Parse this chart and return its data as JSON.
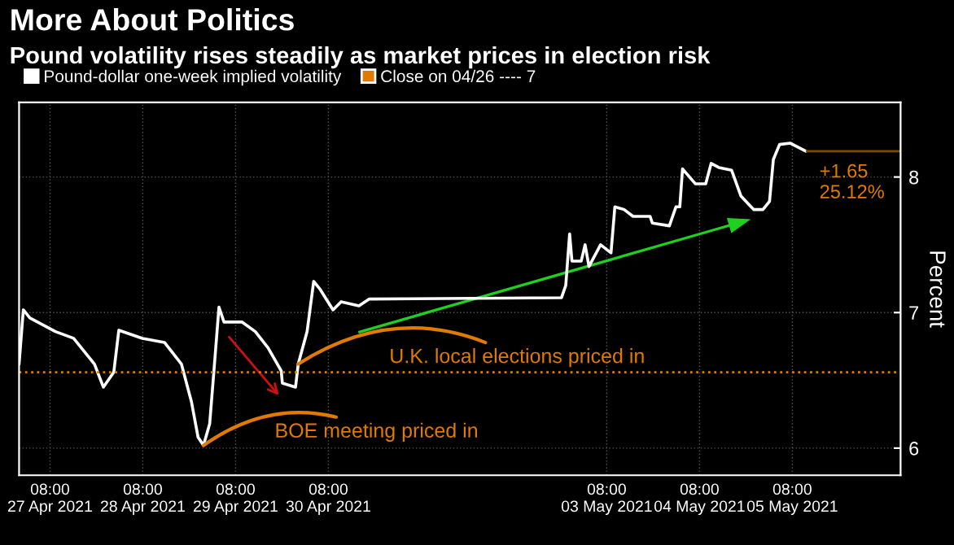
{
  "chart_data": {
    "type": "line",
    "title": "More About Politics",
    "subtitle": "Pound volatility rises steadily as market prices in election risk",
    "ylabel": "Percent",
    "series": [
      {
        "name": "Pound-dollar one-week implied volatility",
        "color": "#ffffff",
        "x": [
          "2021-04-27T00:00",
          "2021-04-27T01:06",
          "2021-04-27T02:48",
          "2021-04-27T09:24",
          "2021-04-27T14:06",
          "2021-04-27T19:30",
          "2021-04-27T21:48",
          "2021-04-28T00:30",
          "2021-04-28T01:48",
          "2021-04-28T07:54",
          "2021-04-28T13:36",
          "2021-04-28T18:00",
          "2021-04-28T20:36",
          "2021-04-28T22:18",
          "2021-04-28T23:42",
          "2021-04-29T01:18",
          "2021-04-29T02:24",
          "2021-04-29T03:42",
          "2021-04-29T05:00",
          "2021-04-29T09:42",
          "2021-04-29T13:06",
          "2021-04-29T16:24",
          "2021-04-29T19:48",
          "2021-04-29T20:06",
          "2021-04-29T23:30",
          "2021-04-30T00:12",
          "2021-04-30T02:30",
          "2021-04-30T04:12",
          "2021-04-30T05:54",
          "2021-04-30T09:12",
          "2021-04-30T11:18",
          "2021-04-30T15:54",
          "2021-04-30T18:36",
          "2021-05-02T20:18",
          "2021-05-02T21:24",
          "2021-05-02T22:24",
          "2021-05-02T23:00",
          "2021-05-03T01:24",
          "2021-05-03T02:24",
          "2021-05-03T03:24",
          "2021-05-03T06:24",
          "2021-05-03T09:06",
          "2021-05-03T10:06",
          "2021-05-03T12:30",
          "2021-05-03T14:48",
          "2021-05-03T19:12",
          "2021-05-03T19:48",
          "2021-05-04T00:12",
          "2021-05-04T01:54",
          "2021-05-04T02:54",
          "2021-05-04T03:36",
          "2021-05-04T06:54",
          "2021-05-04T09:36",
          "2021-05-04T11:00",
          "2021-05-04T13:00",
          "2021-05-04T16:18",
          "2021-05-04T18:42",
          "2021-05-04T22:00",
          "2021-05-05T00:24",
          "2021-05-05T02:06",
          "2021-05-05T03:06",
          "2021-05-05T04:42",
          "2021-05-05T07:24",
          "2021-05-05T11:30"
        ],
        "values": [
          6.62,
          7.02,
          6.96,
          6.86,
          6.81,
          6.62,
          6.45,
          6.56,
          6.87,
          6.81,
          6.78,
          6.62,
          6.34,
          6.08,
          6.02,
          6.18,
          6.57,
          7.04,
          6.93,
          6.93,
          6.86,
          6.74,
          6.57,
          6.48,
          6.45,
          6.62,
          6.86,
          7.23,
          7.17,
          7.02,
          7.08,
          7.05,
          7.1,
          7.11,
          7.2,
          7.58,
          7.38,
          7.38,
          7.5,
          7.34,
          7.5,
          7.44,
          7.78,
          7.76,
          7.71,
          7.71,
          7.66,
          7.64,
          7.78,
          7.78,
          8.06,
          7.95,
          7.95,
          8.1,
          8.07,
          8.05,
          7.86,
          7.76,
          7.76,
          7.82,
          8.13,
          8.24,
          8.25,
          8.19
        ]
      }
    ],
    "xlim": [
      "2021-04-27T00:00",
      "2021-05-06T12:00"
    ],
    "ylim": [
      5.8,
      8.55
    ],
    "xticks": [
      {
        "value": "2021-04-27T08:00",
        "label": "08:00\n27 Apr 2021"
      },
      {
        "value": "2021-04-28T08:00",
        "label": "08:00\n28 Apr 2021"
      },
      {
        "value": "2021-04-29T08:00",
        "label": "08:00\n29 Apr 2021"
      },
      {
        "value": "2021-04-30T08:00",
        "label": "08:00\n30 Apr 2021"
      },
      {
        "value": "2021-05-03T08:00",
        "label": "08:00\n03 May 2021"
      },
      {
        "value": "2021-05-04T08:00",
        "label": "08:00\n04 May 2021"
      },
      {
        "value": "2021-05-05T08:00",
        "label": "08:00\n05 May 2021"
      }
    ],
    "yticks": [
      6,
      7,
      8
    ],
    "ref_lines": [
      {
        "axis": "y",
        "value": 6.56,
        "label": "Close on 04/26 ---- 7",
        "color": "#e07b00",
        "line_style": "dotted"
      },
      {
        "axis": "y",
        "value": 8.19,
        "color": "#7a4a00",
        "line_style": "solid"
      }
    ],
    "annotations": [
      {
        "text": "+1.65\n25.12%",
        "x": "2021-05-05T11:30",
        "y": 8.19
      },
      {
        "text": "U.K. local elections priced in",
        "x": "2021-04-30T00:12",
        "y": 6.62
      },
      {
        "text": "BOE meeting priced in",
        "x": "2021-04-28T23:42",
        "y": 6.02
      }
    ],
    "grid": true,
    "legend": "top left",
    "line_style": "solid",
    "marker": "none"
  }
}
